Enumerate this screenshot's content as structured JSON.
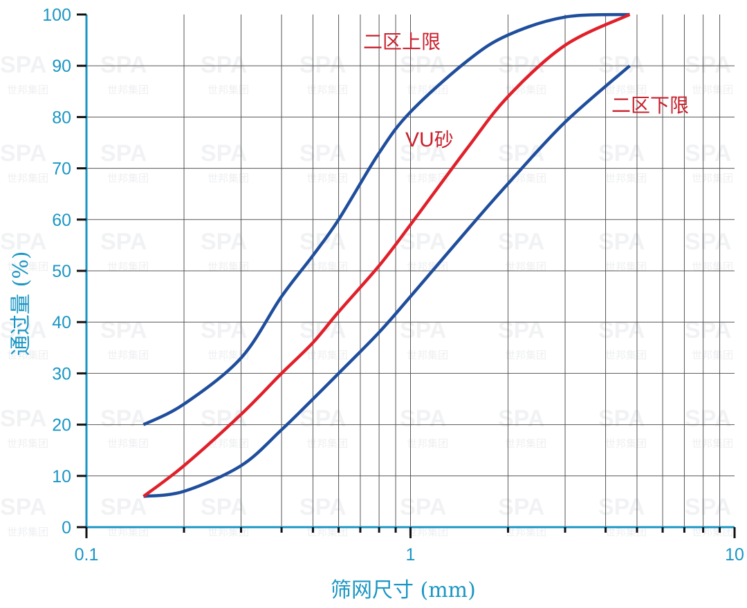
{
  "chart_data": {
    "type": "line",
    "title": "",
    "xlabel": "筛网尺寸 (mm)",
    "ylabel": "通过量 (%)",
    "xscale": "log",
    "xlim": [
      0.1,
      10
    ],
    "ylim": [
      0,
      100
    ],
    "x_tick_labels": [
      "0.1",
      "1",
      "10"
    ],
    "y_tick_labels": [
      "0",
      "10",
      "20",
      "30",
      "40",
      "50",
      "60",
      "70",
      "80",
      "90",
      "100"
    ],
    "grid": true,
    "legend": "inline labels",
    "x": [
      0.15,
      0.2,
      0.3,
      0.4,
      0.5,
      0.6,
      0.8,
      1.0,
      1.5,
      2.0,
      3.0,
      4.75
    ],
    "series": [
      {
        "name": "二区上限",
        "color": "#1f4e9c",
        "values": [
          20,
          24,
          33,
          45,
          53,
          60,
          73,
          81,
          91,
          96,
          99.5,
          100
        ]
      },
      {
        "name": "VU砂",
        "color": "#e0202a",
        "values": [
          6,
          12,
          22,
          30,
          36,
          42,
          51,
          59,
          74,
          84,
          94,
          100
        ]
      },
      {
        "name": "二区下限",
        "color": "#1f4e9c",
        "values": [
          6,
          7,
          12,
          19,
          25,
          30,
          38,
          45,
          58,
          67,
          79,
          90
        ]
      }
    ],
    "annotations": [
      {
        "text": "二区上限",
        "x": 1.0,
        "y": 94
      },
      {
        "text": "VU砂",
        "x": 0.9,
        "y": 76
      },
      {
        "text": "二区下限",
        "x": 5.0,
        "y": 83
      }
    ]
  },
  "labels": {
    "upper": "二区上限",
    "vu_prefix": "VU",
    "vu_suffix": "砂",
    "lower": "二区下限",
    "xlabel": "筛网尺寸 (mm)",
    "ylabel": "通过量 (%)"
  },
  "watermark": {
    "logo": "SPA",
    "text": "世邦集团"
  },
  "colors": {
    "axis": "#1a96c4",
    "tick": "#111111",
    "grid": "#555555",
    "limit_curve": "#1f4e9c",
    "vu_curve": "#e0202a",
    "label_red": "#c8202c"
  }
}
